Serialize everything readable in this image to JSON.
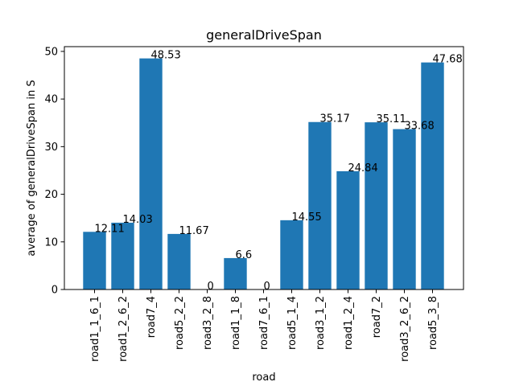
{
  "chart_data": {
    "type": "bar",
    "title": "generalDriveSpan",
    "xlabel": "road",
    "ylabel": "average of generalDriveSpan in S",
    "categories": [
      "road1_1_6_1",
      "road1_2_6_2",
      "road7_4",
      "road5_2_2",
      "road3_2_8",
      "road1_1_8",
      "road7_6_1",
      "road5_1_4",
      "road3_1_2",
      "road1_2_4",
      "road7_2",
      "road3_2_6_2",
      "road5_3_8"
    ],
    "values": [
      12.11,
      14.03,
      48.53,
      11.67,
      0,
      6.6,
      0,
      14.55,
      35.17,
      24.84,
      35.11,
      33.68,
      47.68
    ],
    "value_labels": [
      "12.11",
      "14.03",
      "48.53",
      "11.67",
      "0",
      "6.6",
      "0",
      "14.55",
      "35.17",
      "24.84",
      "35.11",
      "33.68",
      "47.68"
    ],
    "ylim": [
      0,
      51
    ],
    "yticks": [
      0,
      10,
      20,
      30,
      40,
      50
    ],
    "grid": false,
    "bar_color": "#1f77b4"
  }
}
